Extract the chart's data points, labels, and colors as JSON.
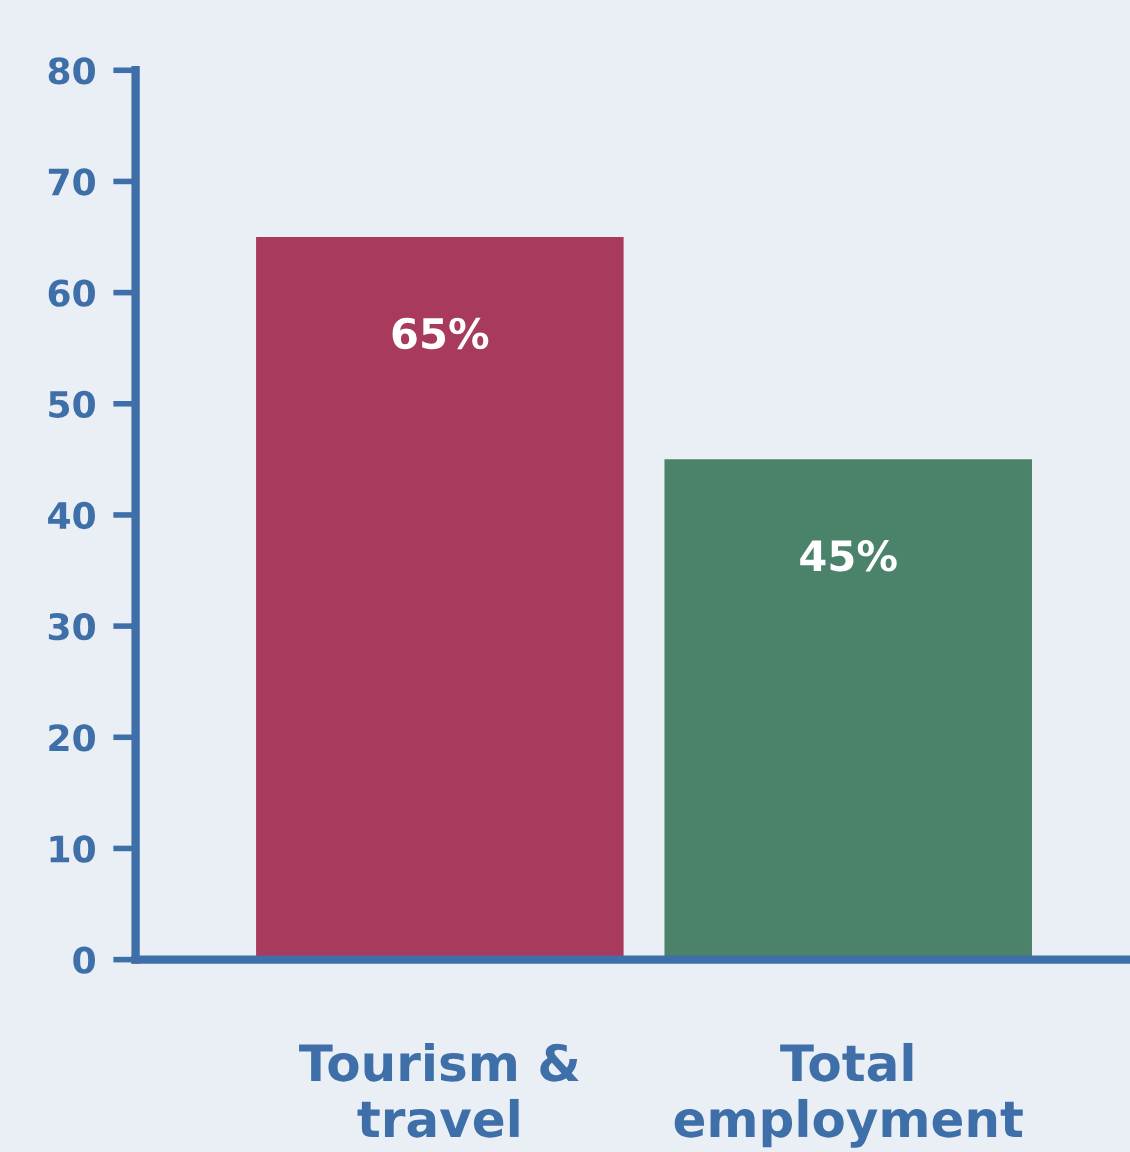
{
  "chart_data": {
    "type": "bar",
    "categories": [
      "Tourism &\ntravel",
      "Total\nemployment"
    ],
    "values": [
      65,
      45
    ],
    "colors": [
      "#a83b5c",
      "#4b836a"
    ],
    "value_labels": [
      "65%",
      "45%"
    ],
    "ylim": [
      0,
      80
    ],
    "yticks": [
      0,
      10,
      20,
      30,
      40,
      50,
      60,
      70,
      80
    ],
    "grid": false,
    "legend": false
  }
}
